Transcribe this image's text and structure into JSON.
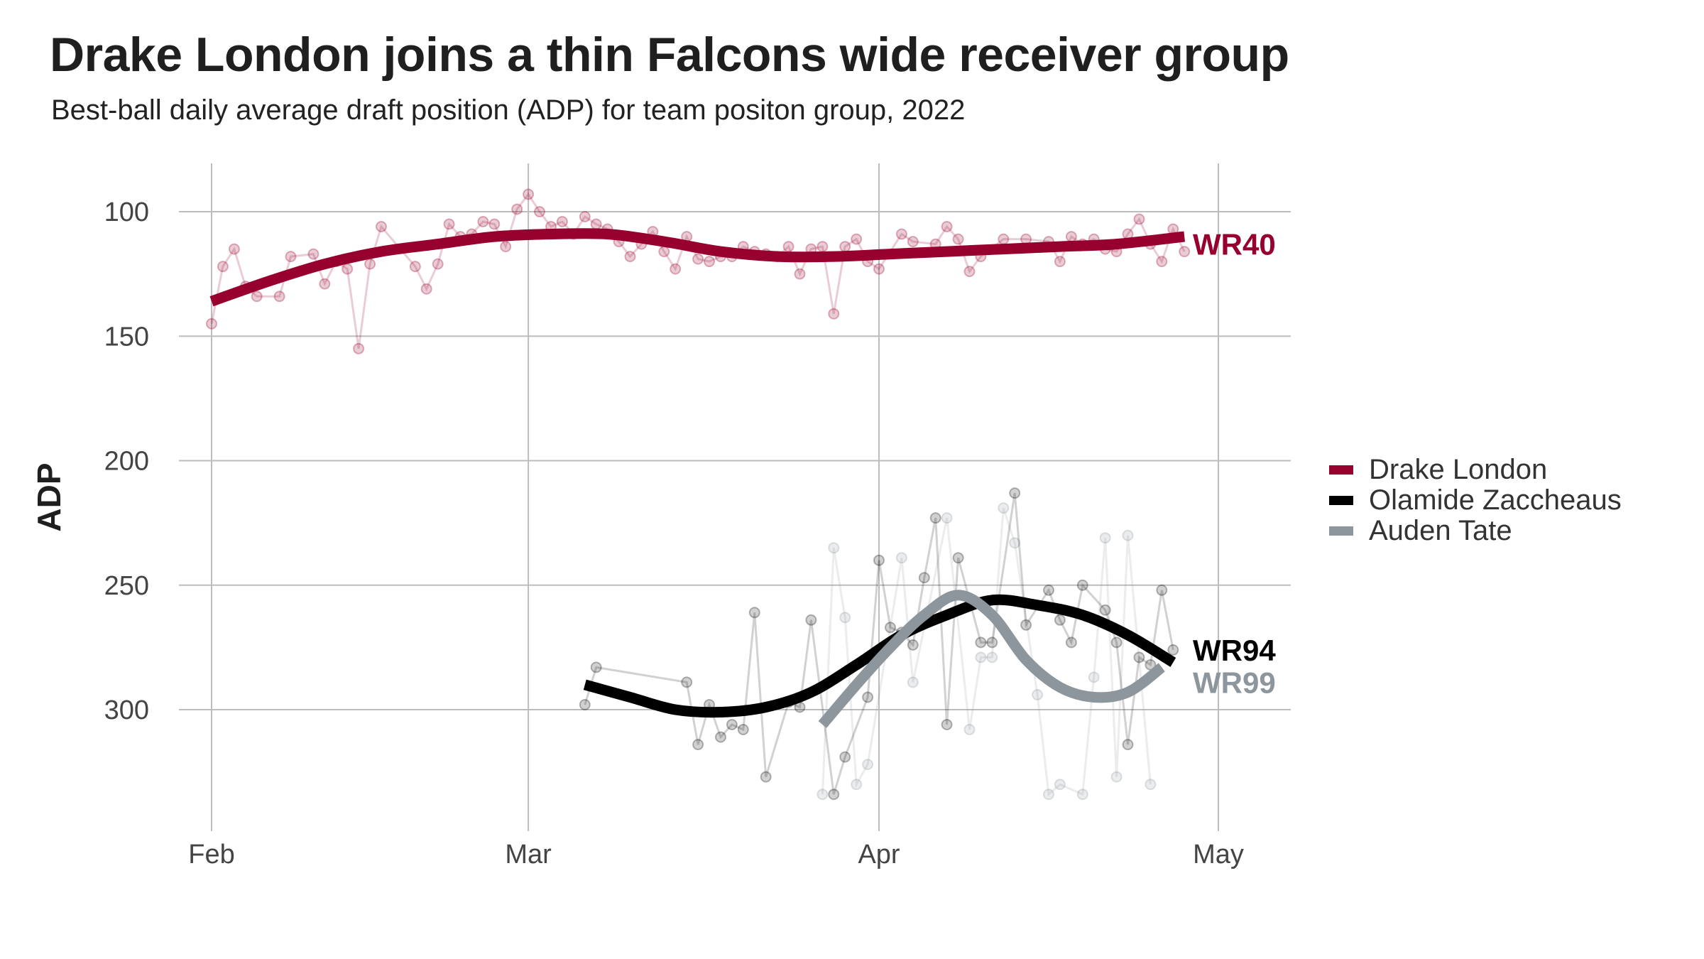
{
  "title": "Drake London joins a thin Falcons wide receiver group",
  "subtitle": "Best-ball daily average draft position (ADP) for team positon group, 2022",
  "chart_data": {
    "type": "line",
    "title": "Drake London joins a thin Falcons wide receiver group",
    "subtitle": "Best-ball daily average draft position (ADP) for team positon group, 2022",
    "xlabel": "",
    "ylabel": "ADP",
    "y_reversed": true,
    "ylim": [
      80,
      345
    ],
    "xlim": [
      "2022-02-01",
      "2022-05-04"
    ],
    "x_ticks": [
      {
        "date": "2022-02-01",
        "label": "Feb"
      },
      {
        "date": "2022-03-01",
        "label": "Mar"
      },
      {
        "date": "2022-04-01",
        "label": "Apr"
      },
      {
        "date": "2022-05-01",
        "label": "May"
      }
    ],
    "y_ticks": [
      100,
      150,
      200,
      250,
      300
    ],
    "grid": true,
    "legend_position": "right",
    "series": [
      {
        "name": "Drake London",
        "color": "#97002e",
        "end_label": "WR40",
        "daily_adp": [
          [
            "2022-02-01",
            145
          ],
          [
            "2022-02-02",
            122
          ],
          [
            "2022-02-03",
            115
          ],
          [
            "2022-02-04",
            130
          ],
          [
            "2022-02-05",
            134
          ],
          [
            "2022-02-07",
            134
          ],
          [
            "2022-02-08",
            118
          ],
          [
            "2022-02-10",
            117
          ],
          [
            "2022-02-11",
            129
          ],
          [
            "2022-02-12",
            120
          ],
          [
            "2022-02-13",
            123
          ],
          [
            "2022-02-14",
            155
          ],
          [
            "2022-02-15",
            121
          ],
          [
            "2022-02-16",
            106
          ],
          [
            "2022-02-19",
            122
          ],
          [
            "2022-02-20",
            131
          ],
          [
            "2022-02-21",
            121
          ],
          [
            "2022-02-22",
            105
          ],
          [
            "2022-02-23",
            110
          ],
          [
            "2022-02-24",
            109
          ],
          [
            "2022-02-25",
            104
          ],
          [
            "2022-02-26",
            105
          ],
          [
            "2022-02-27",
            114
          ],
          [
            "2022-02-28",
            99
          ],
          [
            "2022-03-01",
            93
          ],
          [
            "2022-03-02",
            100
          ],
          [
            "2022-03-03",
            106
          ],
          [
            "2022-03-04",
            104
          ],
          [
            "2022-03-05",
            109
          ],
          [
            "2022-03-06",
            102
          ],
          [
            "2022-03-07",
            105
          ],
          [
            "2022-03-08",
            107
          ],
          [
            "2022-03-09",
            112
          ],
          [
            "2022-03-10",
            118
          ],
          [
            "2022-03-11",
            113
          ],
          [
            "2022-03-12",
            108
          ],
          [
            "2022-03-13",
            116
          ],
          [
            "2022-03-14",
            123
          ],
          [
            "2022-03-15",
            110
          ],
          [
            "2022-03-16",
            119
          ],
          [
            "2022-03-17",
            120
          ],
          [
            "2022-03-18",
            118
          ],
          [
            "2022-03-19",
            118
          ],
          [
            "2022-03-20",
            114
          ],
          [
            "2022-03-21",
            116
          ],
          [
            "2022-03-22",
            117
          ],
          [
            "2022-03-23",
            118
          ],
          [
            "2022-03-24",
            114
          ],
          [
            "2022-03-25",
            125
          ],
          [
            "2022-03-26",
            115
          ],
          [
            "2022-03-27",
            114
          ],
          [
            "2022-03-28",
            141
          ],
          [
            "2022-03-29",
            114
          ],
          [
            "2022-03-30",
            111
          ],
          [
            "2022-03-31",
            120
          ],
          [
            "2022-04-01",
            123
          ],
          [
            "2022-04-03",
            109
          ],
          [
            "2022-04-04",
            112
          ],
          [
            "2022-04-06",
            113
          ],
          [
            "2022-04-07",
            106
          ],
          [
            "2022-04-08",
            111
          ],
          [
            "2022-04-09",
            124
          ],
          [
            "2022-04-10",
            118
          ],
          [
            "2022-04-12",
            111
          ],
          [
            "2022-04-14",
            111
          ],
          [
            "2022-04-16",
            112
          ],
          [
            "2022-04-17",
            120
          ],
          [
            "2022-04-18",
            110
          ],
          [
            "2022-04-19",
            113
          ],
          [
            "2022-04-20",
            111
          ],
          [
            "2022-04-21",
            115
          ],
          [
            "2022-04-22",
            116
          ],
          [
            "2022-04-23",
            109
          ],
          [
            "2022-04-24",
            103
          ],
          [
            "2022-04-25",
            113
          ],
          [
            "2022-04-26",
            120
          ],
          [
            "2022-04-27",
            107
          ],
          [
            "2022-04-28",
            116
          ]
        ],
        "smooth": [
          [
            "2022-02-01",
            136
          ],
          [
            "2022-02-06",
            128
          ],
          [
            "2022-02-11",
            121
          ],
          [
            "2022-02-16",
            116
          ],
          [
            "2022-02-21",
            113
          ],
          [
            "2022-02-26",
            110
          ],
          [
            "2022-03-03",
            109
          ],
          [
            "2022-03-08",
            109
          ],
          [
            "2022-03-13",
            112
          ],
          [
            "2022-03-18",
            116
          ],
          [
            "2022-03-23",
            118
          ],
          [
            "2022-03-28",
            118
          ],
          [
            "2022-04-02",
            117
          ],
          [
            "2022-04-07",
            116
          ],
          [
            "2022-04-12",
            115
          ],
          [
            "2022-04-17",
            114
          ],
          [
            "2022-04-22",
            113
          ],
          [
            "2022-04-28",
            110
          ]
        ]
      },
      {
        "name": "Olamide Zaccheaus",
        "color": "#000000",
        "end_label": "WR94",
        "daily_adp": [
          [
            "2022-03-06",
            298
          ],
          [
            "2022-03-07",
            283
          ],
          [
            "2022-03-15",
            289
          ],
          [
            "2022-03-16",
            314
          ],
          [
            "2022-03-17",
            298
          ],
          [
            "2022-03-18",
            311
          ],
          [
            "2022-03-19",
            306
          ],
          [
            "2022-03-20",
            308
          ],
          [
            "2022-03-21",
            261
          ],
          [
            "2022-03-22",
            327
          ],
          [
            "2022-03-24",
            297
          ],
          [
            "2022-03-25",
            299
          ],
          [
            "2022-03-26",
            264
          ],
          [
            "2022-03-28",
            334
          ],
          [
            "2022-03-29",
            319
          ],
          [
            "2022-03-31",
            295
          ],
          [
            "2022-04-01",
            240
          ],
          [
            "2022-04-02",
            267
          ],
          [
            "2022-04-03",
            269
          ],
          [
            "2022-04-04",
            274
          ],
          [
            "2022-04-05",
            247
          ],
          [
            "2022-04-06",
            223
          ],
          [
            "2022-04-07",
            306
          ],
          [
            "2022-04-08",
            239
          ],
          [
            "2022-04-10",
            273
          ],
          [
            "2022-04-11",
            273
          ],
          [
            "2022-04-13",
            213
          ],
          [
            "2022-04-14",
            266
          ],
          [
            "2022-04-16",
            252
          ],
          [
            "2022-04-17",
            264
          ],
          [
            "2022-04-18",
            273
          ],
          [
            "2022-04-19",
            250
          ],
          [
            "2022-04-21",
            260
          ],
          [
            "2022-04-22",
            273
          ],
          [
            "2022-04-23",
            314
          ],
          [
            "2022-04-24",
            279
          ],
          [
            "2022-04-25",
            282
          ],
          [
            "2022-04-26",
            252
          ],
          [
            "2022-04-27",
            276
          ]
        ],
        "smooth": [
          [
            "2022-03-06",
            290
          ],
          [
            "2022-03-10",
            295
          ],
          [
            "2022-03-14",
            300
          ],
          [
            "2022-03-18",
            301
          ],
          [
            "2022-03-22",
            299
          ],
          [
            "2022-03-26",
            293
          ],
          [
            "2022-03-30",
            282
          ],
          [
            "2022-04-03",
            270
          ],
          [
            "2022-04-07",
            262
          ],
          [
            "2022-04-11",
            256
          ],
          [
            "2022-04-15",
            258
          ],
          [
            "2022-04-19",
            262
          ],
          [
            "2022-04-23",
            270
          ],
          [
            "2022-04-27",
            281
          ]
        ]
      },
      {
        "name": "Auden Tate",
        "color": "#8c969c",
        "end_label": "WR99",
        "daily_adp": [
          [
            "2022-03-27",
            334
          ],
          [
            "2022-03-28",
            235
          ],
          [
            "2022-03-29",
            263
          ],
          [
            "2022-03-30",
            330
          ],
          [
            "2022-03-31",
            322
          ],
          [
            "2022-04-03",
            239
          ],
          [
            "2022-04-04",
            289
          ],
          [
            "2022-04-07",
            223
          ],
          [
            "2022-04-09",
            308
          ],
          [
            "2022-04-10",
            279
          ],
          [
            "2022-04-11",
            279
          ],
          [
            "2022-04-12",
            219
          ],
          [
            "2022-04-13",
            233
          ],
          [
            "2022-04-15",
            294
          ],
          [
            "2022-04-16",
            334
          ],
          [
            "2022-04-17",
            330
          ],
          [
            "2022-04-19",
            334
          ],
          [
            "2022-04-20",
            287
          ],
          [
            "2022-04-21",
            231
          ],
          [
            "2022-04-22",
            327
          ],
          [
            "2022-04-23",
            230
          ],
          [
            "2022-04-25",
            330
          ]
        ],
        "smooth": [
          [
            "2022-03-27",
            306
          ],
          [
            "2022-03-30",
            290
          ],
          [
            "2022-04-02",
            275
          ],
          [
            "2022-04-05",
            262
          ],
          [
            "2022-04-08",
            254
          ],
          [
            "2022-04-11",
            262
          ],
          [
            "2022-04-14",
            280
          ],
          [
            "2022-04-17",
            291
          ],
          [
            "2022-04-20",
            295
          ],
          [
            "2022-04-23",
            293
          ],
          [
            "2022-04-26",
            283
          ]
        ]
      }
    ]
  }
}
